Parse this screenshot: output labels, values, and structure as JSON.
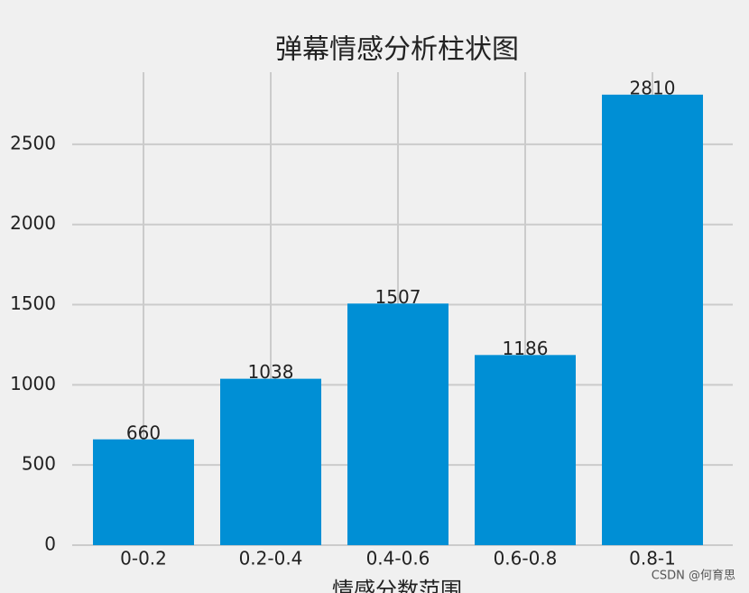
{
  "chart_data": {
    "type": "bar",
    "title": "弹幕情感分析柱状图",
    "x_label": "情感分数范围",
    "categories": [
      "0-0.2",
      "0.2-0.4",
      "0.4-0.6",
      "0.6-0.8",
      "0.8-1"
    ],
    "values": [
      660,
      1038,
      1507,
      1186,
      2810
    ],
    "color": "#008fd5",
    "ylim": [
      0,
      2950
    ],
    "yticks": [
      0,
      500,
      1000,
      1500,
      2000,
      2500
    ],
    "grid": true
  },
  "watermark": "CSDN @何育思"
}
